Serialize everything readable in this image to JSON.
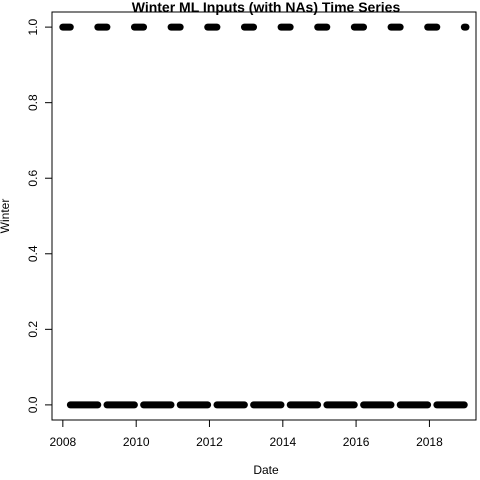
{
  "chart_data": {
    "type": "scatter",
    "title": "Winter ML Inputs (with NAs) Time Series",
    "xlabel": "Date",
    "ylabel": "Winter",
    "x_ticks": [
      "2008",
      "2010",
      "2012",
      "2014",
      "2016",
      "2018"
    ],
    "y_ticks": [
      "0.0",
      "0.2",
      "0.4",
      "0.6",
      "0.8",
      "1.0"
    ],
    "xlim": [
      "2007-09-15",
      "2019-04-10"
    ],
    "ylim": [
      -0.04,
      1.04
    ],
    "grid": false,
    "legend": "none",
    "marker_color": "#000000",
    "series": [
      {
        "segments": [
          {
            "value": 1,
            "start": "2008-01-01",
            "end": "2008-03-15"
          },
          {
            "value": 0,
            "start": "2008-03-16",
            "end": "2008-12-14"
          },
          {
            "value": 1,
            "start": "2008-12-15",
            "end": "2009-03-15"
          },
          {
            "value": 0,
            "start": "2009-03-16",
            "end": "2009-12-14"
          },
          {
            "value": 1,
            "start": "2009-12-15",
            "end": "2010-03-15"
          },
          {
            "value": 0,
            "start": "2010-03-16",
            "end": "2010-12-14"
          },
          {
            "value": 1,
            "start": "2010-12-15",
            "end": "2011-03-15"
          },
          {
            "value": 0,
            "start": "2011-03-16",
            "end": "2011-12-14"
          },
          {
            "value": 1,
            "start": "2011-12-15",
            "end": "2012-03-15"
          },
          {
            "value": 0,
            "start": "2012-03-16",
            "end": "2012-12-14"
          },
          {
            "value": 1,
            "start": "2012-12-15",
            "end": "2013-03-15"
          },
          {
            "value": 0,
            "start": "2013-03-16",
            "end": "2013-12-14"
          },
          {
            "value": 1,
            "start": "2013-12-15",
            "end": "2014-03-15"
          },
          {
            "value": 0,
            "start": "2014-03-16",
            "end": "2014-12-14"
          },
          {
            "value": 1,
            "start": "2014-12-15",
            "end": "2015-03-15"
          },
          {
            "value": 0,
            "start": "2015-03-16",
            "end": "2015-12-14"
          },
          {
            "value": 1,
            "start": "2015-12-15",
            "end": "2016-03-15"
          },
          {
            "value": 0,
            "start": "2016-03-16",
            "end": "2016-12-14"
          },
          {
            "value": 1,
            "start": "2016-12-15",
            "end": "2017-03-15"
          },
          {
            "value": 0,
            "start": "2017-03-16",
            "end": "2017-12-14"
          },
          {
            "value": 1,
            "start": "2017-12-15",
            "end": "2018-03-15"
          },
          {
            "value": 0,
            "start": "2018-03-16",
            "end": "2018-12-14"
          },
          {
            "value": 1,
            "start": "2018-12-15",
            "end": "2018-12-31"
          }
        ]
      }
    ]
  }
}
